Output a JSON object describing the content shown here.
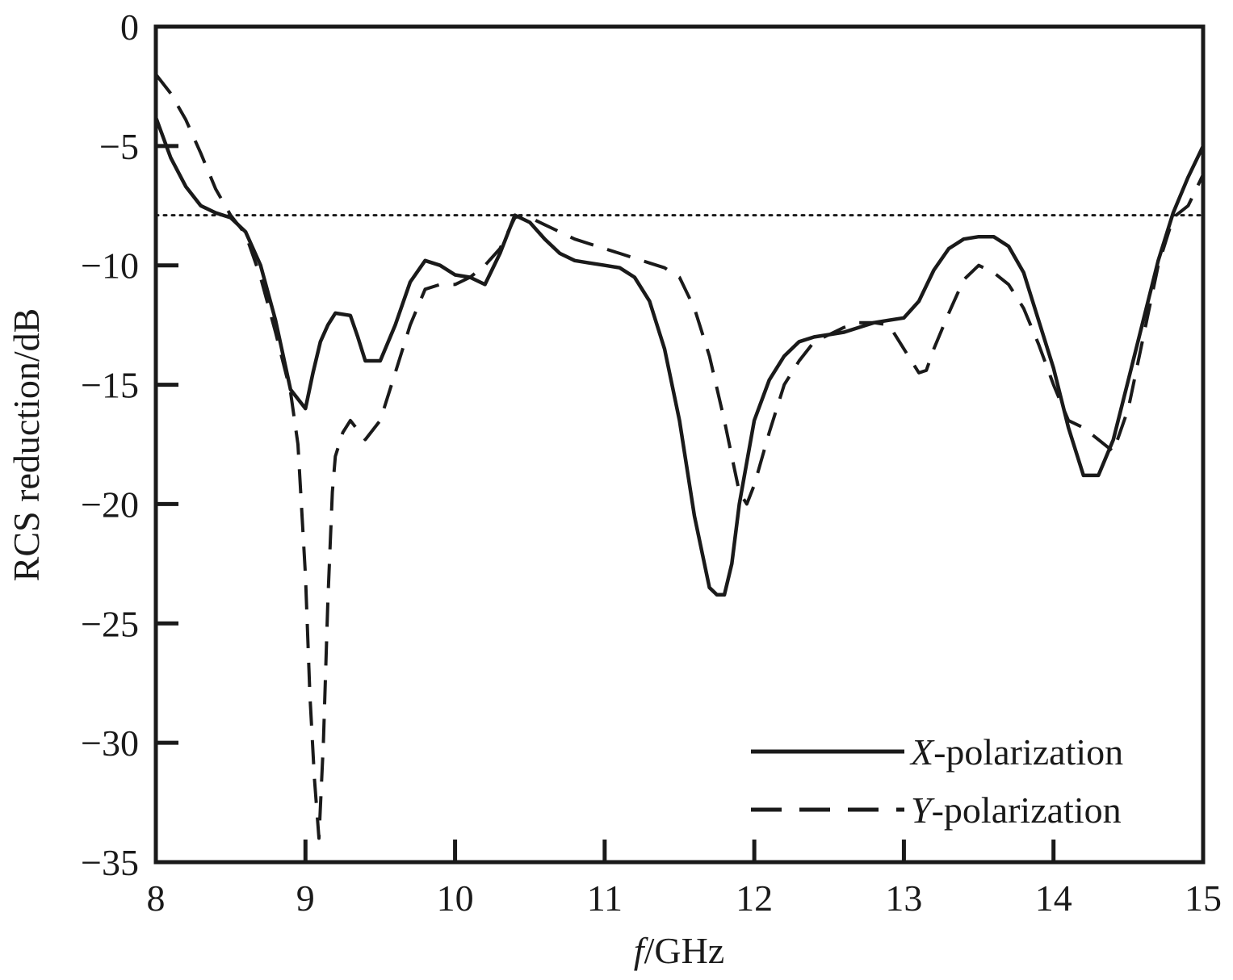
{
  "chart_data": {
    "type": "line",
    "xlabel": {
      "italic": "f",
      "rest": "/GHz"
    },
    "ylabel": "RCS reduction/dB",
    "xlim": [
      8,
      15
    ],
    "ylim": [
      -35,
      0
    ],
    "xticks": [
      8,
      9,
      10,
      11,
      12,
      13,
      14,
      15
    ],
    "yticks": [
      0,
      -5,
      -10,
      -15,
      -20,
      -25,
      -30,
      -35
    ],
    "xtick_labels": [
      "8",
      "9",
      "10",
      "11",
      "12",
      "13",
      "14",
      "15"
    ],
    "ytick_labels": [
      "0",
      "−5",
      "−10",
      "−15",
      "−20",
      "−25",
      "−30",
      "−35"
    ],
    "reference_line": {
      "y": -7.9,
      "style": "dotted"
    },
    "grid": false,
    "legend_position": "bottom-right",
    "series": [
      {
        "name": "X-polarization",
        "legend_italic": "X",
        "legend_rest": "-polarization",
        "style": "solid",
        "color": "#1a1a1a",
        "x": [
          8.0,
          8.1,
          8.2,
          8.3,
          8.4,
          8.5,
          8.6,
          8.7,
          8.8,
          8.9,
          9.0,
          9.05,
          9.1,
          9.15,
          9.2,
          9.3,
          9.35,
          9.4,
          9.5,
          9.6,
          9.7,
          9.8,
          9.9,
          10.0,
          10.1,
          10.2,
          10.3,
          10.4,
          10.5,
          10.6,
          10.7,
          10.8,
          10.9,
          11.0,
          11.1,
          11.2,
          11.3,
          11.4,
          11.5,
          11.6,
          11.7,
          11.75,
          11.8,
          11.85,
          11.9,
          12.0,
          12.1,
          12.2,
          12.3,
          12.4,
          12.5,
          12.6,
          12.7,
          12.8,
          12.9,
          13.0,
          13.1,
          13.2,
          13.3,
          13.4,
          13.5,
          13.6,
          13.7,
          13.8,
          13.9,
          14.0,
          14.1,
          14.2,
          14.3,
          14.4,
          14.5,
          14.6,
          14.7,
          14.8,
          14.9,
          15.0
        ],
        "y": [
          -3.8,
          -5.5,
          -6.7,
          -7.5,
          -7.8,
          -8.0,
          -8.6,
          -10.0,
          -12.3,
          -15.2,
          -16.0,
          -14.5,
          -13.2,
          -12.5,
          -12.0,
          -12.1,
          -13.0,
          -14.0,
          -14.0,
          -12.5,
          -10.7,
          -9.8,
          -10.0,
          -10.4,
          -10.5,
          -10.8,
          -9.5,
          -7.9,
          -8.2,
          -8.9,
          -9.5,
          -9.8,
          -9.9,
          -10.0,
          -10.1,
          -10.5,
          -11.5,
          -13.5,
          -16.5,
          -20.5,
          -23.5,
          -23.8,
          -23.8,
          -22.5,
          -20.0,
          -16.5,
          -14.8,
          -13.8,
          -13.2,
          -13.0,
          -12.9,
          -12.8,
          -12.6,
          -12.4,
          -12.3,
          -12.2,
          -11.5,
          -10.2,
          -9.3,
          -8.9,
          -8.8,
          -8.8,
          -9.2,
          -10.3,
          -12.3,
          -14.3,
          -16.8,
          -18.8,
          -18.8,
          -17.3,
          -14.8,
          -12.3,
          -9.8,
          -7.8,
          -6.3,
          -5.0
        ]
      },
      {
        "name": "Y-polarization",
        "legend_italic": "Y",
        "legend_rest": "-polarization",
        "style": "dashed",
        "color": "#1a1a1a",
        "x": [
          8.0,
          8.1,
          8.2,
          8.3,
          8.4,
          8.5,
          8.6,
          8.7,
          8.8,
          8.9,
          8.95,
          9.0,
          9.03,
          9.06,
          9.09,
          9.12,
          9.15,
          9.18,
          9.2,
          9.25,
          9.3,
          9.4,
          9.5,
          9.6,
          9.7,
          9.8,
          9.9,
          10.0,
          10.1,
          10.2,
          10.3,
          10.4,
          10.45,
          10.5,
          10.6,
          10.7,
          10.8,
          10.9,
          11.0,
          11.1,
          11.2,
          11.3,
          11.4,
          11.5,
          11.6,
          11.7,
          11.8,
          11.85,
          11.9,
          11.95,
          12.0,
          12.1,
          12.2,
          12.3,
          12.4,
          12.5,
          12.6,
          12.7,
          12.8,
          12.9,
          13.0,
          13.1,
          13.15,
          13.2,
          13.3,
          13.4,
          13.5,
          13.6,
          13.7,
          13.8,
          13.9,
          14.0,
          14.1,
          14.2,
          14.3,
          14.4,
          14.5,
          14.6,
          14.7,
          14.8,
          14.9,
          15.0
        ],
        "y": [
          -2.0,
          -2.8,
          -3.9,
          -5.3,
          -6.8,
          -7.9,
          -8.7,
          -10.5,
          -12.8,
          -15.3,
          -17.5,
          -23.0,
          -28.0,
          -31.5,
          -34.0,
          -30.0,
          -24.0,
          -19.5,
          -18.0,
          -17.0,
          -16.5,
          -17.3,
          -16.5,
          -14.5,
          -12.5,
          -11.0,
          -10.8,
          -10.8,
          -10.5,
          -10.0,
          -9.3,
          -8.0,
          -7.9,
          -8.0,
          -8.3,
          -8.6,
          -8.9,
          -9.1,
          -9.3,
          -9.5,
          -9.7,
          -9.9,
          -10.1,
          -10.5,
          -11.8,
          -13.8,
          -16.5,
          -18.0,
          -19.5,
          -20.0,
          -19.2,
          -17.0,
          -15.0,
          -14.0,
          -13.2,
          -12.9,
          -12.6,
          -12.4,
          -12.4,
          -12.5,
          -13.5,
          -14.5,
          -14.4,
          -13.5,
          -12.0,
          -10.6,
          -10.0,
          -10.3,
          -10.8,
          -11.8,
          -13.3,
          -15.0,
          -16.5,
          -16.8,
          -17.3,
          -17.8,
          -16.0,
          -13.0,
          -10.0,
          -8.0,
          -7.5,
          -6.2
        ]
      }
    ]
  }
}
